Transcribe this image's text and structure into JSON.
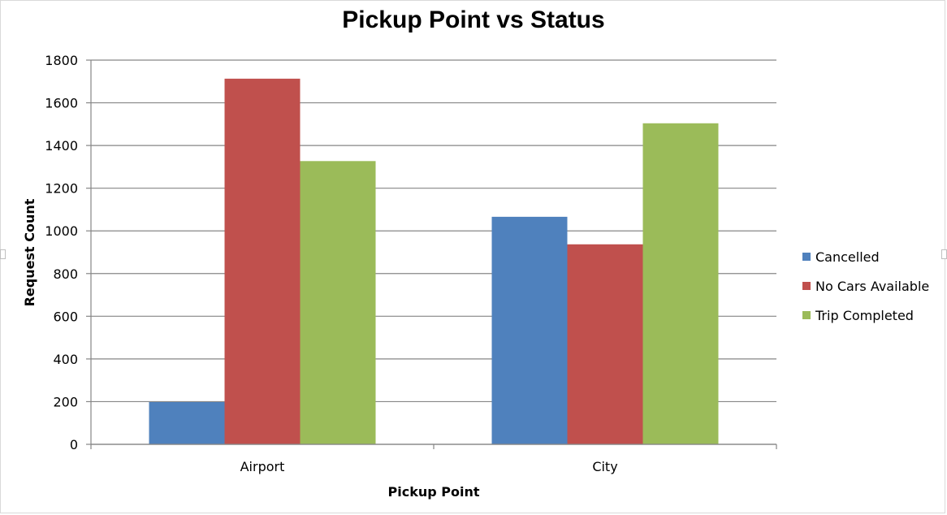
{
  "chart_data": {
    "type": "bar",
    "title": "Pickup Point vs Status",
    "xlabel": "Pickup Point",
    "ylabel": "Request Count",
    "categories": [
      "Airport",
      "City"
    ],
    "series": [
      {
        "name": "Cancelled",
        "values": [
          198,
          1066
        ],
        "color": "#4f81bd"
      },
      {
        "name": "No Cars Available",
        "values": [
          1713,
          937
        ],
        "color": "#c0504d"
      },
      {
        "name": "Trip Completed",
        "values": [
          1327,
          1504
        ],
        "color": "#9bbb59"
      }
    ],
    "ylim": [
      0,
      1800
    ],
    "yticks": [
      "0",
      "200",
      "400",
      "600",
      "800",
      "1000",
      "1200",
      "1400",
      "1600",
      "1800"
    ],
    "grid": true,
    "legend_position": "right"
  }
}
